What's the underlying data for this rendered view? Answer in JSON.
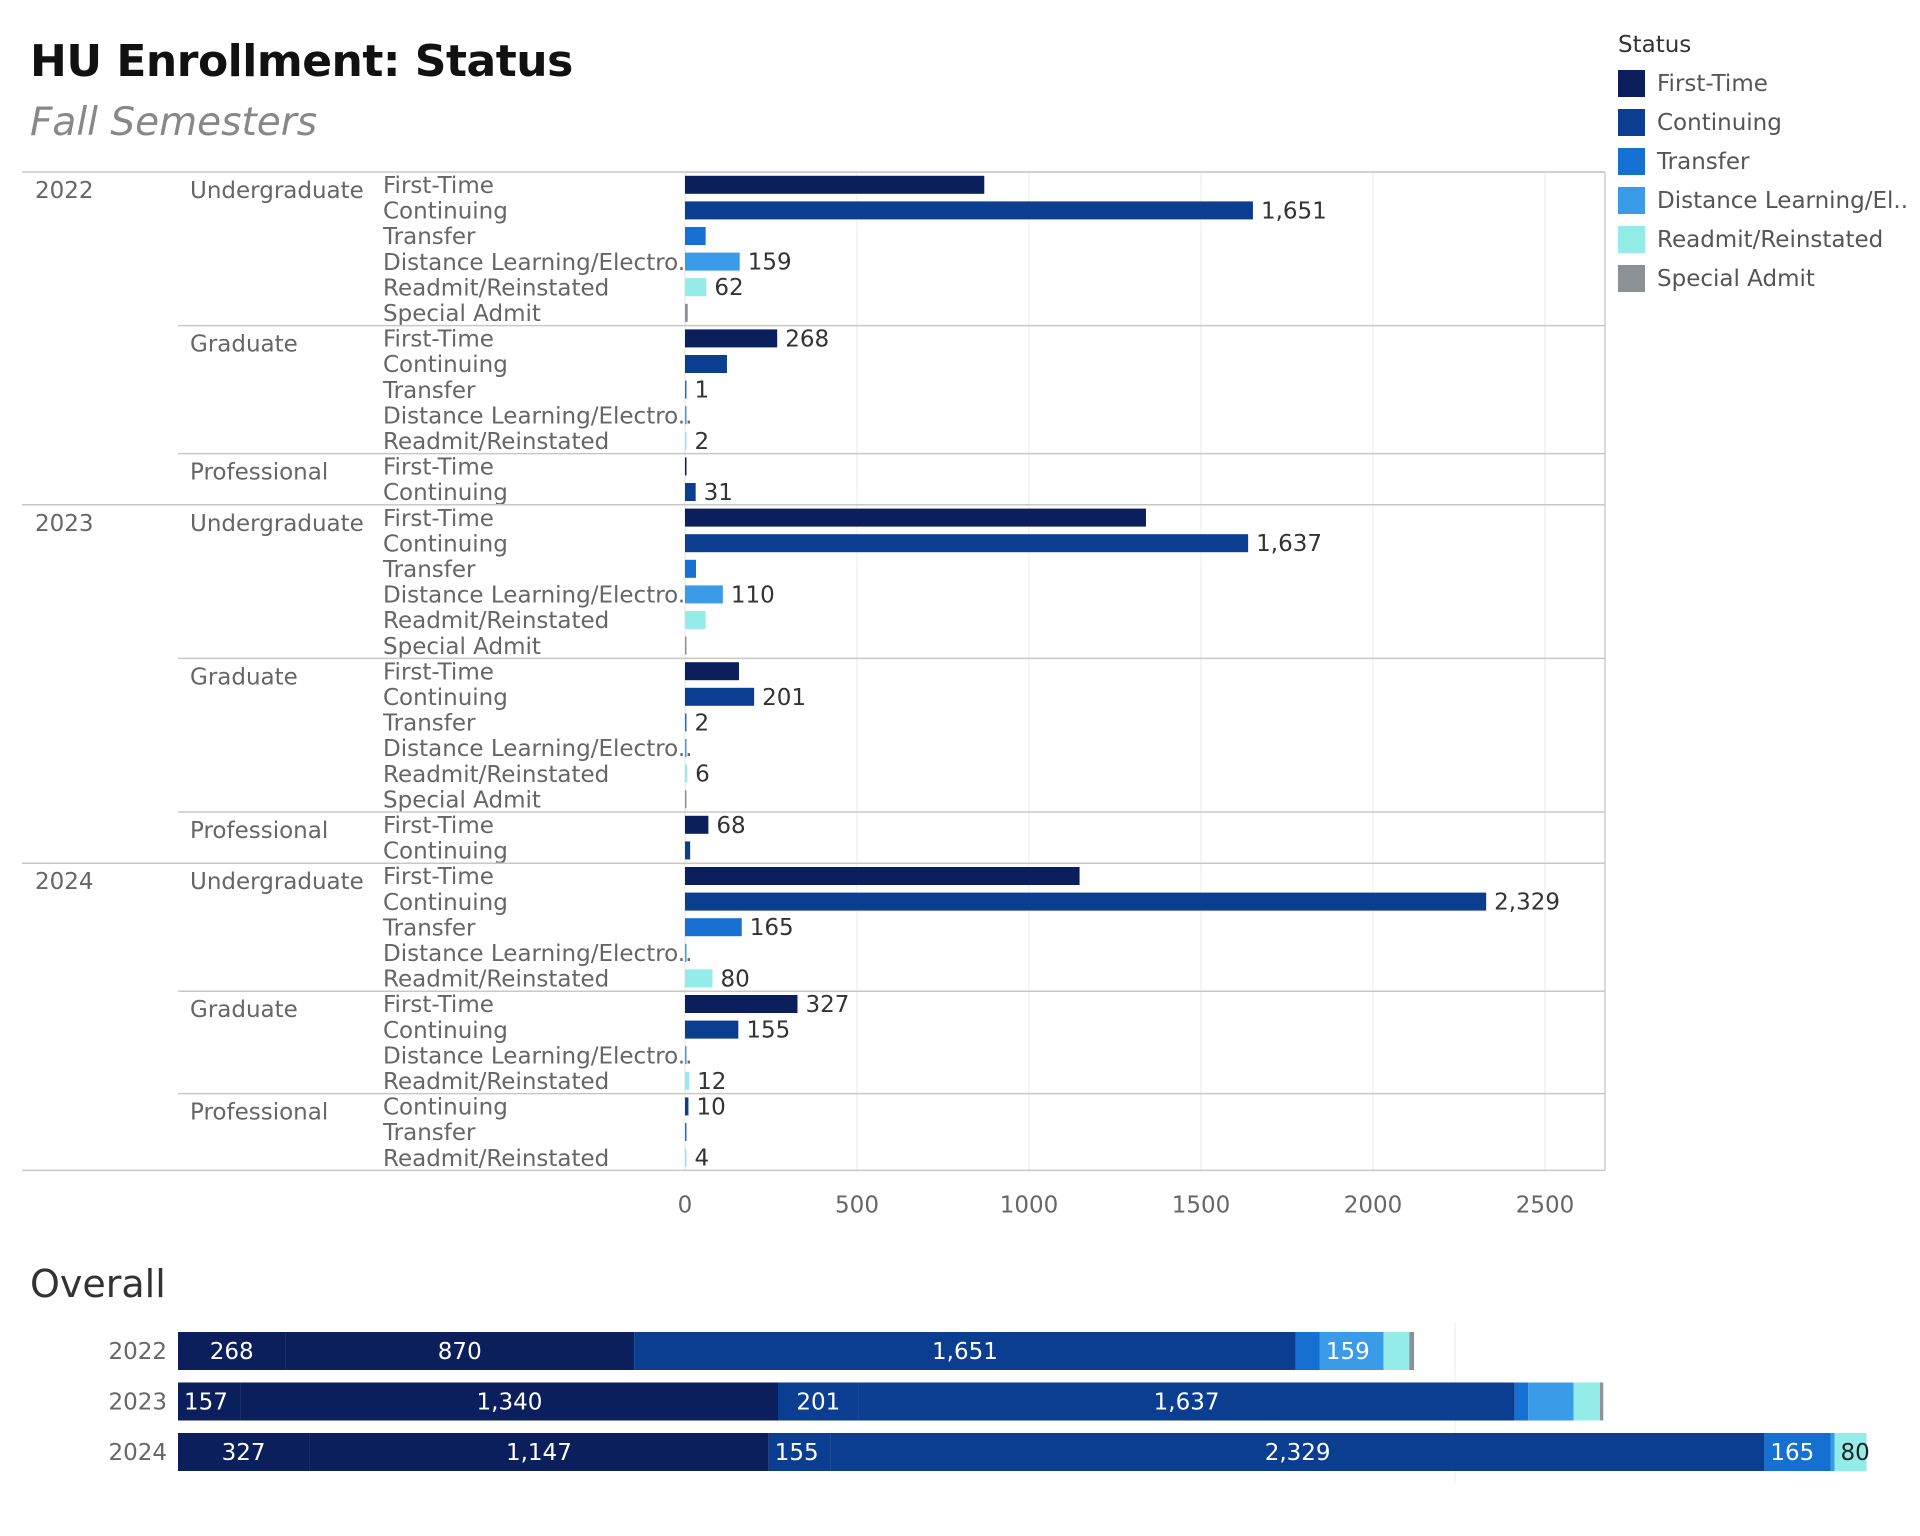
{
  "title": "HU Enrollment: Status",
  "subtitle": "Fall Semesters",
  "overall_title": "Overall",
  "legend": {
    "title": "Status",
    "items": [
      {
        "label": "First-Time",
        "color": "#0a1f5c"
      },
      {
        "label": "Continuing",
        "color": "#0b3d91"
      },
      {
        "label": "Transfer",
        "color": "#1570d1"
      },
      {
        "label": "Distance Learning/El..",
        "color": "#3a9be8"
      },
      {
        "label": "Readmit/Reinstated",
        "color": "#93ece8"
      },
      {
        "label": "Special Admit",
        "color": "#8c9196"
      }
    ]
  },
  "chart_data": [
    {
      "type": "bar",
      "orientation": "horizontal",
      "xlim": [
        0,
        2500
      ],
      "x_ticks": [
        0,
        500,
        1000,
        1500,
        2000,
        2500
      ],
      "grid": true,
      "groups": [
        {
          "year": "2022",
          "levels": [
            {
              "level": "Undergraduate",
              "rows": [
                {
                  "status": "First-Time",
                  "value": 870,
                  "label": ""
                },
                {
                  "status": "Continuing",
                  "value": 1651,
                  "label": "1,651"
                },
                {
                  "status": "Transfer",
                  "value": 60,
                  "label": ""
                },
                {
                  "status": "Distance Learning/Electro..",
                  "value": 159,
                  "label": "159"
                },
                {
                  "status": "Readmit/Reinstated",
                  "value": 62,
                  "label": "62"
                },
                {
                  "status": "Special Admit",
                  "value": 8,
                  "label": ""
                }
              ]
            },
            {
              "level": "Graduate",
              "rows": [
                {
                  "status": "First-Time",
                  "value": 268,
                  "label": "268"
                },
                {
                  "status": "Continuing",
                  "value": 122,
                  "label": ""
                },
                {
                  "status": "Transfer",
                  "value": 1,
                  "label": "1"
                },
                {
                  "status": "Distance Learning/Electro..",
                  "value": 4,
                  "label": ""
                },
                {
                  "status": "Readmit/Reinstated",
                  "value": 2,
                  "label": "2"
                }
              ]
            },
            {
              "level": "Professional",
              "rows": [
                {
                  "status": "First-Time",
                  "value": 4,
                  "label": ""
                },
                {
                  "status": "Continuing",
                  "value": 31,
                  "label": "31"
                }
              ]
            }
          ]
        },
        {
          "year": "2023",
          "levels": [
            {
              "level": "Undergraduate",
              "rows": [
                {
                  "status": "First-Time",
                  "value": 1340,
                  "label": ""
                },
                {
                  "status": "Continuing",
                  "value": 1637,
                  "label": "1,637"
                },
                {
                  "status": "Transfer",
                  "value": 32,
                  "label": ""
                },
                {
                  "status": "Distance Learning/Electro..",
                  "value": 110,
                  "label": "110"
                },
                {
                  "status": "Readmit/Reinstated",
                  "value": 60,
                  "label": ""
                },
                {
                  "status": "Special Admit",
                  "value": 4,
                  "label": ""
                }
              ]
            },
            {
              "level": "Graduate",
              "rows": [
                {
                  "status": "First-Time",
                  "value": 157,
                  "label": ""
                },
                {
                  "status": "Continuing",
                  "value": 201,
                  "label": "201"
                },
                {
                  "status": "Transfer",
                  "value": 2,
                  "label": "2"
                },
                {
                  "status": "Distance Learning/Electro..",
                  "value": 3,
                  "label": ""
                },
                {
                  "status": "Readmit/Reinstated",
                  "value": 6,
                  "label": "6"
                },
                {
                  "status": "Special Admit",
                  "value": 2,
                  "label": ""
                }
              ]
            },
            {
              "level": "Professional",
              "rows": [
                {
                  "status": "First-Time",
                  "value": 68,
                  "label": "68"
                },
                {
                  "status": "Continuing",
                  "value": 15,
                  "label": ""
                }
              ]
            }
          ]
        },
        {
          "year": "2024",
          "levels": [
            {
              "level": "Undergraduate",
              "rows": [
                {
                  "status": "First-Time",
                  "value": 1147,
                  "label": ""
                },
                {
                  "status": "Continuing",
                  "value": 2329,
                  "label": "2,329"
                },
                {
                  "status": "Transfer",
                  "value": 165,
                  "label": "165"
                },
                {
                  "status": "Distance Learning/Electro..",
                  "value": 3,
                  "label": ""
                },
                {
                  "status": "Readmit/Reinstated",
                  "value": 80,
                  "label": "80"
                }
              ]
            },
            {
              "level": "Graduate",
              "rows": [
                {
                  "status": "First-Time",
                  "value": 327,
                  "label": "327"
                },
                {
                  "status": "Continuing",
                  "value": 155,
                  "label": "155"
                },
                {
                  "status": "Distance Learning/Electro..",
                  "value": 3,
                  "label": ""
                },
                {
                  "status": "Readmit/Reinstated",
                  "value": 12,
                  "label": "12"
                }
              ]
            },
            {
              "level": "Professional",
              "rows": [
                {
                  "status": "Continuing",
                  "value": 10,
                  "label": "10"
                },
                {
                  "status": "Transfer",
                  "value": 3,
                  "label": ""
                },
                {
                  "status": "Readmit/Reinstated",
                  "value": 4,
                  "label": "4"
                }
              ]
            }
          ]
        }
      ]
    },
    {
      "type": "bar",
      "orientation": "horizontal",
      "stacked": true,
      "title": "Overall",
      "categories": [
        "2022",
        "2023",
        "2024"
      ],
      "xlim": [
        0,
        3750
      ],
      "rows": [
        {
          "year": "2022",
          "segments": [
            {
              "status": "First-Time",
              "value": 268,
              "label": "268"
            },
            {
              "status": "First-Time",
              "value": 870,
              "label": "870"
            },
            {
              "status": "Continuing",
              "value": 1651,
              "label": "1,651"
            },
            {
              "status": "Transfer",
              "value": 60,
              "label": ""
            },
            {
              "status": "Distance Learning/Electro..",
              "value": 159,
              "label": "159"
            },
            {
              "status": "Readmit/Reinstated",
              "value": 64,
              "label": ""
            },
            {
              "status": "Special Admit",
              "value": 12,
              "label": ""
            }
          ]
        },
        {
          "year": "2023",
          "segments": [
            {
              "status": "First-Time",
              "value": 157,
              "label": "157"
            },
            {
              "status": "First-Time",
              "value": 1340,
              "label": "1,340"
            },
            {
              "status": "Continuing",
              "value": 201,
              "label": "201"
            },
            {
              "status": "Continuing",
              "value": 1637,
              "label": "1,637"
            },
            {
              "status": "Transfer",
              "value": 34,
              "label": ""
            },
            {
              "status": "Distance Learning/Electro..",
              "value": 113,
              "label": ""
            },
            {
              "status": "Readmit/Reinstated",
              "value": 66,
              "label": ""
            },
            {
              "status": "Special Admit",
              "value": 8,
              "label": ""
            }
          ]
        },
        {
          "year": "2024",
          "segments": [
            {
              "status": "First-Time",
              "value": 327,
              "label": "327"
            },
            {
              "status": "First-Time",
              "value": 1147,
              "label": "1,147"
            },
            {
              "status": "Continuing",
              "value": 155,
              "label": "155"
            },
            {
              "status": "Continuing",
              "value": 2329,
              "label": "2,329"
            },
            {
              "status": "Transfer",
              "value": 165,
              "label": "165"
            },
            {
              "status": "Distance Learning/Electro..",
              "value": 10,
              "label": ""
            },
            {
              "status": "Readmit/Reinstated",
              "value": 80,
              "label": "80"
            }
          ]
        }
      ]
    }
  ]
}
